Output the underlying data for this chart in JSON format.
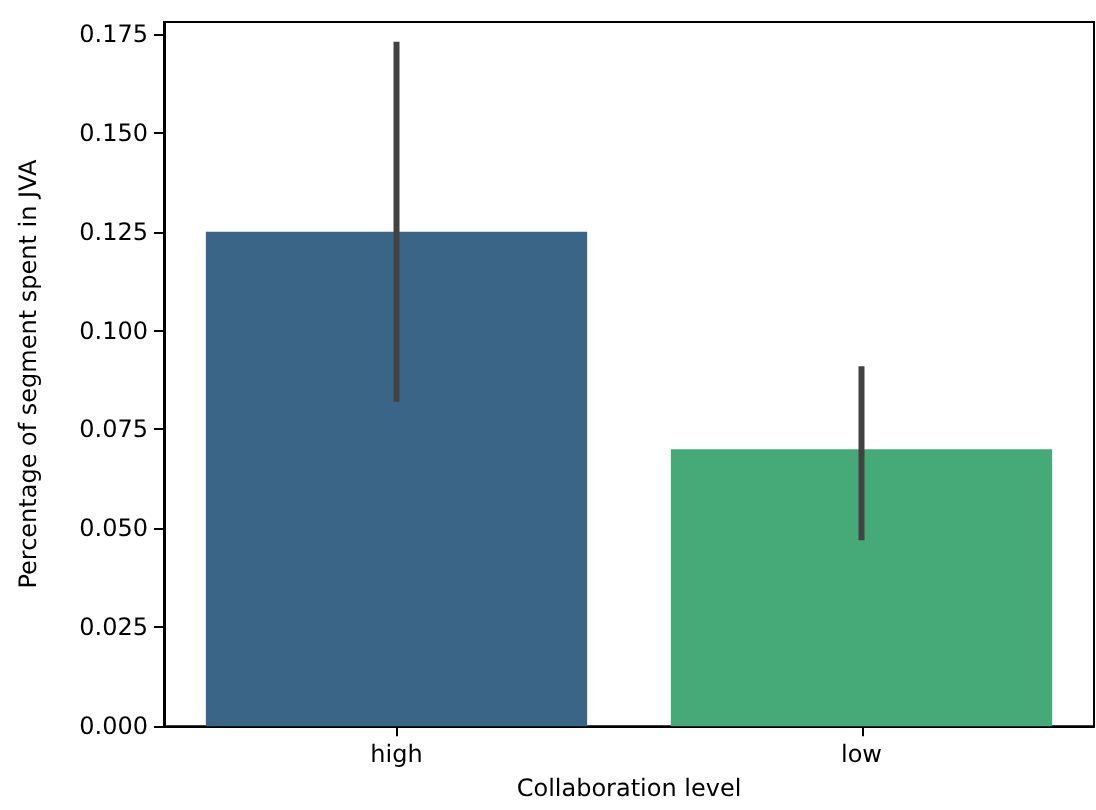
{
  "chart_data": {
    "type": "bar",
    "xlabel": "Collaboration level",
    "ylabel": "Percentage of segment spent in JVA",
    "categories": [
      "high",
      "low"
    ],
    "values": [
      0.125,
      0.07
    ],
    "colors": [
      "#3b6587",
      "#45aa78"
    ],
    "errors": [
      [
        0.082,
        0.173
      ],
      [
        0.047,
        0.091
      ]
    ],
    "ylim": [
      0,
      0.178
    ],
    "yticks": [
      {
        "value": 0,
        "label": "0.000"
      },
      {
        "value": 0.025,
        "label": "0.025"
      },
      {
        "value": 0.05,
        "label": "0.050"
      },
      {
        "value": 0.075,
        "label": "0.075"
      },
      {
        "value": 0.1,
        "label": "0.100"
      },
      {
        "value": 0.125,
        "label": "0.125"
      },
      {
        "value": 0.15,
        "label": "0.150"
      },
      {
        "value": 0.175,
        "label": "0.175"
      }
    ],
    "grid": false
  }
}
